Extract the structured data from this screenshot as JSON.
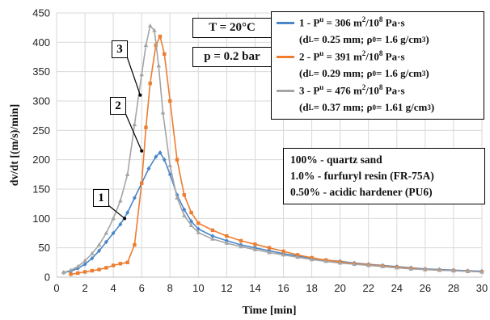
{
  "chart_data": {
    "type": "line",
    "xlabel": "Time [min]",
    "ylabel": "dv/dt [(m/s)/min]",
    "xlim": [
      0,
      30
    ],
    "ylim": [
      0,
      450
    ],
    "xticks": [
      0,
      2,
      4,
      6,
      8,
      10,
      12,
      14,
      16,
      18,
      20,
      22,
      24,
      26,
      28,
      30
    ],
    "yticks": [
      0,
      50,
      100,
      150,
      200,
      250,
      300,
      350,
      400,
      450
    ],
    "grid": true,
    "legend_position": "top-right",
    "series": [
      {
        "name": "1 - P",
        "name_sup": "u",
        "name_rest": " = 306 m",
        "name_sup2": "2",
        "name_rest2": "/10",
        "name_sup3": "8",
        "name_rest3": " Pa·s",
        "sub_label": "(d",
        "sub_label_sub": "L",
        "sub_label_rest": " = 0.25 mm; ρ",
        "sub_label_sub2": "0",
        "sub_label_rest2": " = 1.6 g/cm",
        "sub_label_sup": "3",
        "sub_label_end": ")",
        "color": "#4a86c8",
        "marker": "diamond",
        "x": [
          0.5,
          1,
          1.5,
          2,
          2.5,
          3,
          3.5,
          4,
          4.5,
          5,
          5.5,
          6,
          6.5,
          7,
          7.3,
          7.6,
          8,
          8.5,
          9,
          9.5,
          10,
          11,
          12,
          13,
          14,
          15,
          16,
          17,
          18,
          19,
          20,
          21,
          22,
          23,
          24,
          25,
          26,
          27,
          28,
          29,
          30
        ],
        "y": [
          8,
          10,
          15,
          22,
          32,
          45,
          60,
          75,
          90,
          110,
          135,
          160,
          185,
          205,
          212,
          200,
          175,
          140,
          115,
          95,
          82,
          70,
          62,
          55,
          50,
          45,
          40,
          36,
          32,
          29,
          27,
          24,
          22,
          20,
          18,
          16,
          14,
          13,
          12,
          11,
          10
        ]
      },
      {
        "name": "2 - P",
        "name_sup": "u",
        "name_rest": " = 391 m",
        "name_sup2": "2",
        "name_rest2": "/10",
        "name_sup3": "8",
        "name_rest3": " Pa·s",
        "sub_label": "(d",
        "sub_label_sub": "L",
        "sub_label_rest": " = 0.29 mm; ρ",
        "sub_label_sub2": "0",
        "sub_label_rest2": " = 1.6 g/cm",
        "sub_label_sup": "3",
        "sub_label_end": ")",
        "color": "#ed7d31",
        "marker": "square",
        "x": [
          1,
          1.5,
          2,
          2.5,
          3,
          3.5,
          4,
          4.5,
          5,
          5.5,
          6,
          6.3,
          6.6,
          7,
          7.3,
          7.6,
          8,
          8.5,
          9,
          9.5,
          10,
          11,
          12,
          13,
          14,
          15,
          16,
          17,
          18,
          19,
          20,
          21,
          22,
          23,
          24,
          25,
          26,
          27,
          28,
          29,
          30
        ],
        "y": [
          5,
          7,
          9,
          11,
          13,
          16,
          20,
          23,
          25,
          55,
          160,
          255,
          330,
          395,
          410,
          380,
          300,
          200,
          140,
          110,
          92,
          80,
          70,
          62,
          56,
          50,
          44,
          38,
          33,
          29,
          26,
          23,
          21,
          19,
          17,
          15,
          13,
          12,
          11,
          10,
          9
        ]
      },
      {
        "name": "3 - P",
        "name_sup": "u",
        "name_rest": " = 476 m",
        "name_sup2": "2",
        "name_rest2": "/10",
        "name_sup3": "8",
        "name_rest3": " Pa·s",
        "sub_label": "(d",
        "sub_label_sub": "L",
        "sub_label_rest": " = 0.37 mm; ρ",
        "sub_label_sub2": "0",
        "sub_label_rest2": " = 1.61 g/cm",
        "sub_label_sup": "3",
        "sub_label_end": ")",
        "color": "#a5a5a5",
        "marker": "triangle",
        "x": [
          0.5,
          1,
          1.5,
          2,
          2.5,
          3,
          3.5,
          4,
          4.5,
          5,
          5.5,
          6,
          6.3,
          6.6,
          6.9,
          7.2,
          7.5,
          8,
          8.5,
          9,
          9.5,
          10,
          11,
          12,
          13,
          14,
          15,
          16,
          17,
          18,
          19,
          20,
          21,
          22,
          23,
          24,
          25,
          26,
          27,
          28,
          29,
          30
        ],
        "y": [
          8,
          12,
          18,
          28,
          40,
          55,
          75,
          100,
          130,
          175,
          260,
          345,
          395,
          428,
          420,
          360,
          280,
          190,
          135,
          105,
          88,
          76,
          65,
          58,
          52,
          47,
          42,
          38,
          34,
          30,
          27,
          24,
          22,
          20,
          18,
          16,
          14,
          13,
          12,
          11,
          10,
          9
        ]
      }
    ],
    "callouts": [
      {
        "label": "1",
        "series": 0,
        "x": 4.8,
        "y": 100
      },
      {
        "label": "2",
        "series": 1,
        "x": 6.0,
        "y": 215
      },
      {
        "label": "3",
        "series": 2,
        "x": 5.9,
        "y": 310
      }
    ]
  },
  "conditions": {
    "temperature_pre": "T = 20",
    "temperature_deg": "°C",
    "pressure": "p = 0.2 bar"
  },
  "composition": [
    "100% - quartz sand",
    "1.0% - furfuryl resin (FR-75A)",
    "0.50% - acidic hardener (PU6)"
  ]
}
